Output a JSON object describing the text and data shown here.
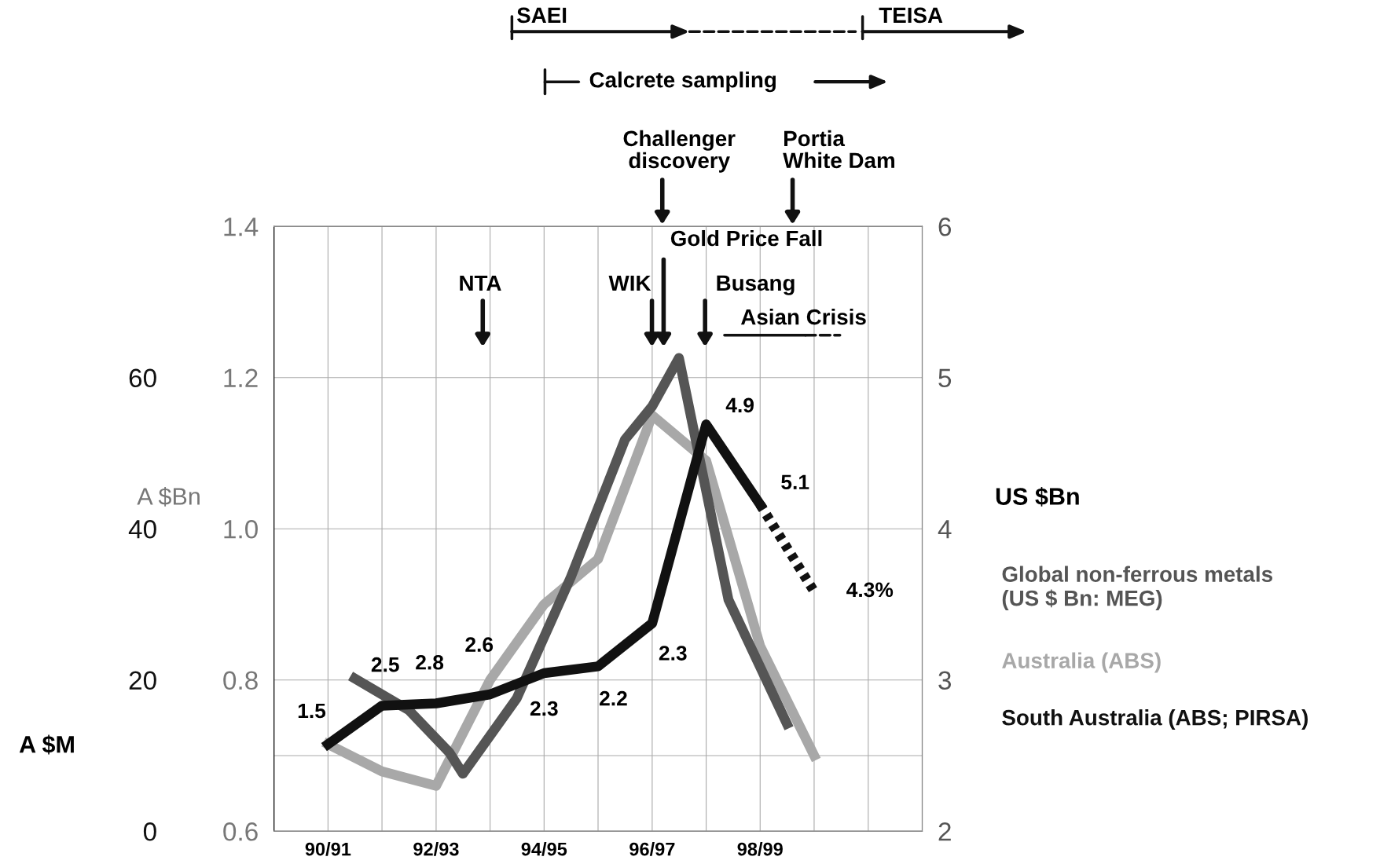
{
  "chart_data": {
    "type": "line",
    "ylabel": "A $Bn",
    "y2label": "US $Bn",
    "y3label": "A $M",
    "xlim": [
      "1990-01",
      "2002-01"
    ],
    "xticks": [
      {
        "value": "1991-01",
        "label": "90/91"
      },
      {
        "value": "1992-01",
        "label": null
      },
      {
        "value": "1993-01",
        "label": "92/93"
      },
      {
        "value": "1994-01",
        "label": null
      },
      {
        "value": "1995-01",
        "label": "94/95"
      },
      {
        "value": "1996-01",
        "label": null
      },
      {
        "value": "1997-01",
        "label": "96/97"
      },
      {
        "value": "1998-01",
        "label": null
      },
      {
        "value": "1999-01",
        "label": "98/99"
      },
      {
        "value": "2000-01",
        "label": null
      },
      {
        "value": "2001-01",
        "label": null
      }
    ],
    "ylim": [
      0.6,
      1.4
    ],
    "yticks": [
      {
        "value": 0.6,
        "label": "0.6"
      },
      {
        "value": 0.7,
        "label": null
      },
      {
        "value": 0.8,
        "label": "0.8"
      },
      {
        "value": 1.0,
        "label": "1.0"
      },
      {
        "value": 1.2,
        "label": "1.2"
      },
      {
        "value": 1.4,
        "label": "1.4"
      }
    ],
    "y2lim": [
      2,
      6
    ],
    "y2ticks": [
      2,
      3,
      4,
      5,
      6
    ],
    "y3lim": [
      0,
      80
    ],
    "y3ticks": [
      0,
      20,
      40,
      60
    ],
    "grid": true,
    "legend": "right",
    "marker": "none",
    "series": [
      {
        "name": "Global non-ferrous metals\n(US $ Bn: MEG)",
        "color": "#555555",
        "axis": "y2",
        "x": [
          "1991-07",
          "1992-07",
          "1993-04",
          "1993-07",
          "1994-07",
          "1995-07",
          "1996-07",
          "1997-01",
          "1997-07",
          "1998-06",
          "1999-07"
        ],
        "values": [
          3.01,
          2.8,
          2.52,
          2.38,
          2.88,
          3.68,
          4.59,
          4.81,
          5.13,
          3.53,
          2.71
        ]
      },
      {
        "name": "Australia (ABS)",
        "color": "#a8a8a8",
        "axis": "y",
        "x": [
          "1991-01",
          "1992-01",
          "1993-01",
          "1994-01",
          "1995-01",
          "1996-01",
          "1997-01",
          "1998-01",
          "1999-01",
          "2000-01"
        ],
        "values": [
          0.715,
          0.679,
          0.66,
          0.8,
          0.9,
          0.96,
          1.15,
          1.09,
          0.845,
          0.7
        ]
      },
      {
        "name": "South Australia (ABS; PIRSA)",
        "color": "#111111",
        "axis": "y3",
        "x": [
          "1991-01",
          "1992-01",
          "1993-01",
          "1994-01",
          "1995-01",
          "1996-01",
          "1997-01",
          "1998-01",
          "1999-01"
        ],
        "values": [
          11.5,
          16.6,
          16.9,
          18.1,
          20.9,
          21.8,
          27.5,
          53.8,
          43.2
        ]
      },
      {
        "color": "#111111",
        "axis": "y3",
        "line_style": "dotted",
        "x": [
          "1999-01",
          "2000-01"
        ],
        "values": [
          43.2,
          31.7
        ]
      }
    ],
    "annotations": [
      {
        "text": "1.5",
        "x": "1991-01",
        "y": 0.715
      },
      {
        "text": "2.5",
        "x": "1992-01",
        "y": 0.766
      },
      {
        "text": "2.8",
        "x": "1993-01",
        "y": 0.769
      },
      {
        "text": "2.6",
        "x": "1994-01",
        "y": 0.781
      },
      {
        "text": "2.3",
        "x": "1995-01",
        "y": 0.809
      },
      {
        "text": "2.2",
        "x": "1996-01",
        "y": 0.818
      },
      {
        "text": "2.3",
        "x": "1997-01",
        "y": 0.875
      },
      {
        "text": "4.9",
        "x": "1998-01",
        "y": 1.138
      },
      {
        "text": "5.1",
        "x": "1999-01",
        "y": 1.032
      },
      {
        "text": "4.3%",
        "x": "2000-01",
        "y": 0.917
      },
      "NTA",
      "WIK",
      "Gold Price Fall",
      "Busang",
      "Asian Crisis",
      "Challenger\ndiscovery",
      "Portia\nWhite Dam",
      "SAEI",
      "TEISA",
      "Calcrete sampling"
    ]
  }
}
